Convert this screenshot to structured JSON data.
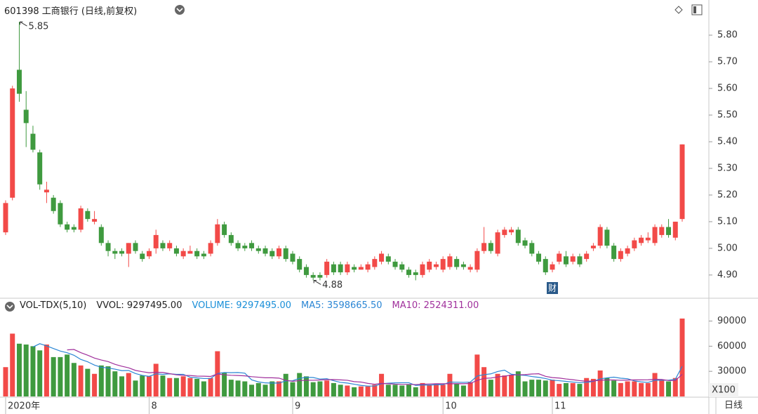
{
  "period_tab": "日线",
  "chart_data": [
    {
      "type": "candlestick",
      "title": "601398 工商银行 (日线,前复权)",
      "categories": [
        "2020年",
        null,
        null,
        null,
        null,
        null,
        null,
        null,
        null,
        null,
        null,
        null,
        null,
        null,
        null,
        null,
        null,
        null,
        null,
        null,
        null,
        "8",
        null,
        null,
        null,
        null,
        null,
        null,
        null,
        null,
        null,
        null,
        null,
        null,
        null,
        null,
        null,
        null,
        null,
        null,
        null,
        null,
        "9",
        null,
        null,
        null,
        null,
        null,
        null,
        null,
        null,
        null,
        null,
        null,
        null,
        null,
        null,
        null,
        null,
        null,
        null,
        null,
        null,
        null,
        "10",
        null,
        null,
        null,
        null,
        null,
        null,
        null,
        null,
        null,
        null,
        null,
        null,
        null,
        null,
        null,
        "11",
        null,
        null,
        null,
        null,
        null,
        null,
        null,
        null,
        null,
        null,
        null,
        null,
        null,
        null,
        null,
        null,
        null,
        null,
        null
      ],
      "open": [
        5.06,
        5.19,
        5.67,
        5.52,
        5.43,
        5.36,
        5.21,
        5.19,
        5.17,
        5.09,
        5.08,
        5.07,
        5.14,
        5.1,
        5.08,
        5.02,
        4.99,
        4.99,
        4.98,
        5.02,
        4.98,
        4.97,
        5.0,
        5.02,
        5.0,
        5.0,
        4.97,
        4.98,
        4.99,
        4.98,
        4.98,
        5.02,
        5.09,
        5.05,
        5.02,
        5.01,
        5.02,
        5.0,
        5.0,
        4.99,
        4.97,
        5.0,
        4.98,
        4.96,
        4.93,
        4.9,
        4.9,
        4.9,
        4.94,
        4.94,
        4.91,
        4.93,
        4.92,
        4.92,
        4.93,
        4.95,
        4.97,
        4.95,
        4.94,
        4.92,
        4.91,
        4.9,
        4.92,
        4.93,
        4.92,
        4.93,
        4.96,
        4.94,
        4.92,
        4.92,
        4.99,
        5.02,
        4.98,
        5.05,
        5.06,
        5.07,
        5.03,
        5.02,
        4.98,
        4.96,
        4.92,
        4.95,
        4.97,
        4.95,
        4.97,
        4.96,
        5.0,
        5.01,
        5.07,
        5.01,
        4.96,
        4.98,
        5.0,
        5.02,
        5.03,
        5.02,
        5.05,
        5.08,
        5.04,
        5.11
      ],
      "high": [
        5.18,
        5.61,
        5.85,
        5.59,
        5.46,
        5.37,
        5.25,
        5.2,
        5.18,
        5.1,
        5.09,
        5.16,
        5.15,
        5.14,
        5.09,
        5.03,
        5.0,
        5.0,
        5.02,
        5.03,
        4.99,
        5.0,
        5.07,
        5.03,
        5.03,
        5.01,
        5.0,
        5.01,
        5.0,
        4.99,
        5.03,
        5.11,
        5.1,
        5.06,
        5.03,
        5.02,
        5.03,
        5.01,
        5.01,
        5.0,
        5.01,
        5.01,
        4.99,
        4.97,
        4.94,
        4.91,
        4.91,
        4.96,
        4.95,
        4.95,
        4.95,
        4.94,
        4.94,
        4.95,
        4.97,
        4.99,
        4.98,
        4.96,
        4.95,
        4.93,
        4.92,
        4.95,
        4.96,
        4.95,
        4.97,
        4.98,
        4.97,
        4.95,
        4.94,
        5.0,
        5.08,
        5.03,
        5.07,
        5.08,
        5.08,
        5.08,
        5.04,
        5.03,
        4.99,
        4.97,
        4.95,
        4.99,
        4.99,
        4.98,
        4.98,
        4.99,
        5.02,
        5.09,
        5.08,
        5.02,
        5.0,
        5.01,
        5.04,
        5.05,
        5.06,
        5.09,
        5.09,
        5.11,
        5.1,
        5.39
      ],
      "low": [
        5.05,
        5.18,
        5.55,
        5.38,
        5.36,
        5.22,
        5.17,
        5.13,
        5.08,
        5.06,
        5.06,
        5.06,
        5.1,
        5.09,
        5.01,
        4.97,
        4.96,
        4.97,
        4.93,
        4.98,
        4.95,
        4.96,
        4.98,
        4.99,
        4.99,
        4.97,
        4.96,
        4.98,
        4.96,
        4.96,
        4.97,
        5.01,
        5.04,
        5.01,
        4.99,
        4.99,
        4.99,
        4.98,
        4.97,
        4.96,
        4.96,
        4.95,
        4.94,
        4.91,
        4.89,
        4.88,
        4.88,
        4.89,
        4.9,
        4.9,
        4.9,
        4.91,
        4.92,
        4.91,
        4.92,
        4.94,
        4.94,
        4.92,
        4.91,
        4.89,
        4.88,
        4.89,
        4.91,
        4.92,
        4.91,
        4.92,
        4.92,
        4.92,
        4.91,
        4.91,
        4.98,
        4.98,
        4.97,
        5.04,
        5.05,
        5.01,
        5.0,
        4.97,
        4.94,
        4.9,
        4.91,
        4.94,
        4.93,
        4.94,
        4.93,
        4.95,
        4.99,
        5.0,
        5.0,
        4.95,
        4.95,
        4.97,
        4.99,
        5.01,
        5.02,
        5.01,
        5.04,
        5.04,
        5.03,
        5.1
      ],
      "close": [
        5.17,
        5.6,
        5.58,
        5.47,
        5.37,
        5.24,
        5.22,
        5.14,
        5.09,
        5.07,
        5.07,
        5.15,
        5.11,
        5.11,
        5.02,
        4.99,
        4.98,
        4.98,
        5.02,
        4.99,
        4.96,
        4.99,
        5.05,
        5.0,
        5.02,
        4.98,
        4.99,
        4.99,
        4.97,
        4.97,
        5.02,
        5.09,
        5.05,
        5.02,
        5.0,
        5.0,
        5.0,
        4.99,
        4.98,
        4.97,
        5.0,
        4.96,
        4.95,
        4.92,
        4.9,
        4.89,
        4.89,
        4.95,
        4.91,
        4.91,
        4.94,
        4.92,
        4.93,
        4.94,
        4.96,
        4.98,
        4.95,
        4.93,
        4.92,
        4.9,
        4.9,
        4.94,
        4.95,
        4.94,
        4.96,
        4.97,
        4.93,
        4.93,
        4.93,
        4.99,
        5.02,
        4.99,
        5.06,
        5.07,
        5.07,
        5.02,
        5.01,
        4.98,
        4.95,
        4.91,
        4.94,
        4.98,
        4.94,
        4.97,
        4.94,
        4.98,
        5.01,
        5.08,
        5.01,
        4.96,
        4.99,
        5.0,
        5.03,
        5.04,
        5.04,
        5.08,
        5.08,
        5.05,
        5.1,
        5.39
      ],
      "up_color": "#f24a48",
      "down_color": "#3f9a3f",
      "max_label": 5.85,
      "min_label": 4.88,
      "event_label": "财",
      "ylim": [
        4.826,
        5.866
      ],
      "yticks": [
        {
          "value": 4.9,
          "label": "4.90"
        },
        {
          "value": 5.0,
          "label": "5.00"
        },
        {
          "value": 5.1,
          "label": "5.10"
        },
        {
          "value": 5.2,
          "label": "5.20"
        },
        {
          "value": 5.3,
          "label": "5.30"
        },
        {
          "value": 5.4,
          "label": "5.40"
        },
        {
          "value": 5.5,
          "label": "5.50"
        },
        {
          "value": 5.6,
          "label": "5.60"
        },
        {
          "value": 5.7,
          "label": "5.70"
        },
        {
          "value": 5.8,
          "label": "5.80"
        }
      ],
      "grid": false
    },
    {
      "type": "bar",
      "title": "VOL-TDX(5,10)",
      "subtitle": "VVOL: 9297495.00",
      "unit_label": "X100",
      "series": [
        {
          "name": "VOLUME: 9297495.00",
          "color": "#1a8fd8",
          "type": "bar",
          "values": [
            35000,
            75000,
            63000,
            62000,
            60000,
            55000,
            62000,
            47000,
            47000,
            50000,
            40000,
            37000,
            33000,
            27000,
            37000,
            36000,
            30000,
            24000,
            28000,
            19000,
            25000,
            24000,
            39000,
            25000,
            22000,
            22000,
            24000,
            22000,
            21000,
            18000,
            22000,
            54000,
            28000,
            20000,
            19000,
            18000,
            14000,
            16000,
            14000,
            18000,
            18000,
            27000,
            17000,
            28000,
            24000,
            17000,
            18000,
            19000,
            16000,
            14000,
            13000,
            11000,
            12000,
            12000,
            14000,
            27000,
            14000,
            14000,
            13000,
            14000,
            11000,
            16000,
            14000,
            15000,
            14000,
            27000,
            15000,
            13000,
            17000,
            50000,
            35000,
            20000,
            27000,
            25000,
            26000,
            30000,
            18000,
            20000,
            20000,
            19000,
            20000,
            15000,
            16000,
            16000,
            15000,
            22000,
            21000,
            31000,
            22000,
            19000,
            16000,
            18000,
            18000,
            16000,
            16000,
            28000,
            19000,
            18000,
            22000,
            93000
          ]
        },
        {
          "name": "MA5: 3598665.50",
          "color": "#2b86d4",
          "type": "line",
          "values": [
            null,
            null,
            null,
            null,
            59000,
            63000,
            60400,
            57200,
            54200,
            52200,
            49200,
            44200,
            41400,
            37400,
            34800,
            34000,
            32600,
            30800,
            31000,
            27400,
            25200,
            24000,
            27000,
            26400,
            27000,
            26400,
            26400,
            23000,
            22200,
            21400,
            21400,
            27400,
            28600,
            28400,
            28600,
            27800,
            19800,
            17400,
            16200,
            16000,
            16000,
            18600,
            18800,
            21600,
            22800,
            22600,
            20800,
            21200,
            18800,
            16800,
            16000,
            14600,
            13200,
            12400,
            12400,
            15200,
            15800,
            16200,
            16400,
            16400,
            13200,
            13600,
            13600,
            14000,
            14000,
            17200,
            17000,
            16800,
            17200,
            24400,
            26000,
            27000,
            29800,
            31400,
            26600,
            25600,
            25200,
            23800,
            22800,
            21400,
            19400,
            18800,
            18000,
            17200,
            16400,
            16800,
            18000,
            21000,
            22200,
            23000,
            21800,
            21200,
            18600,
            17400,
            16800,
            19200,
            19400,
            19400,
            20600,
            36000
          ]
        },
        {
          "name": "MA10: 2524311.00",
          "color": "#a0309c",
          "type": "line",
          "values": [
            null,
            null,
            null,
            null,
            null,
            null,
            null,
            null,
            null,
            55600,
            56100,
            52300,
            49300,
            45800,
            43500,
            41600,
            38400,
            36100,
            34200,
            31100,
            29600,
            28300,
            28900,
            28700,
            27200,
            25800,
            25200,
            25000,
            24300,
            24200,
            23900,
            26900,
            25800,
            25300,
            25000,
            24600,
            23600,
            23000,
            22300,
            22300,
            21900,
            19200,
            18100,
            18900,
            19400,
            19300,
            19700,
            20000,
            20200,
            19800,
            19300,
            17700,
            17200,
            15600,
            14600,
            15600,
            15200,
            14700,
            14400,
            14400,
            14200,
            14700,
            14900,
            15200,
            15200,
            15200,
            15300,
            15200,
            15600,
            19200,
            21600,
            22000,
            23300,
            24300,
            25500,
            25800,
            26100,
            26800,
            27100,
            24000,
            22500,
            22000,
            20900,
            20000,
            18900,
            18100,
            18400,
            19500,
            19700,
            19700,
            19300,
            19600,
            19800,
            19800,
            19900,
            20500,
            20300,
            19000,
            19000,
            26400
          ]
        }
      ],
      "ylim": [
        0,
        98000
      ],
      "yticks": [
        30000,
        60000,
        90000
      ],
      "grid": false
    }
  ]
}
